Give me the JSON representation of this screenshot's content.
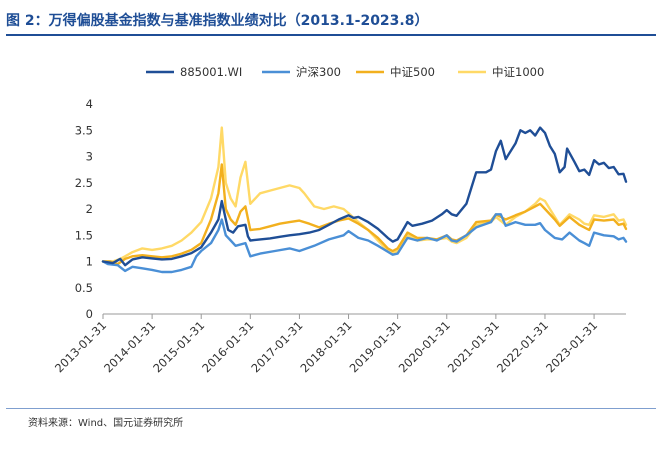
{
  "title": "图 2：万得偏股基金指数与基准指数业绩对比（2013.1-2023.8）",
  "source": "资料来源：Wind、国元证券研究所",
  "chart_data": {
    "type": "line",
    "title": "",
    "xlabel": "",
    "ylabel": "",
    "ylim": [
      0,
      4
    ],
    "yticks": [
      "0",
      "0.5",
      "1",
      "1.5",
      "2",
      "2.5",
      "3",
      "3.5",
      "4"
    ],
    "xticks": [
      "2013-01-31",
      "2014-01-31",
      "2015-01-31",
      "2016-01-31",
      "2017-01-31",
      "2018-01-31",
      "2019-01-31",
      "2020-01-31",
      "2021-01-31",
      "2022-01-31",
      "2023-01-31"
    ],
    "x_range": [
      2013.0,
      2023.65
    ],
    "grid": false,
    "legend_position": "top",
    "series": [
      {
        "name": "885001.WI",
        "color": "#1f4e96",
        "points": [
          [
            2013.0,
            1.0
          ],
          [
            2013.2,
            0.97
          ],
          [
            2013.35,
            1.05
          ],
          [
            2013.45,
            0.93
          ],
          [
            2013.6,
            1.04
          ],
          [
            2013.8,
            1.08
          ],
          [
            2014.0,
            1.06
          ],
          [
            2014.2,
            1.04
          ],
          [
            2014.4,
            1.05
          ],
          [
            2014.6,
            1.1
          ],
          [
            2014.8,
            1.16
          ],
          [
            2015.0,
            1.27
          ],
          [
            2015.2,
            1.55
          ],
          [
            2015.35,
            1.8
          ],
          [
            2015.42,
            2.15
          ],
          [
            2015.5,
            1.8
          ],
          [
            2015.55,
            1.6
          ],
          [
            2015.65,
            1.55
          ],
          [
            2015.75,
            1.67
          ],
          [
            2015.9,
            1.7
          ],
          [
            2015.95,
            1.48
          ],
          [
            2016.0,
            1.4
          ],
          [
            2016.2,
            1.42
          ],
          [
            2016.4,
            1.44
          ],
          [
            2016.6,
            1.47
          ],
          [
            2016.8,
            1.5
          ],
          [
            2017.0,
            1.52
          ],
          [
            2017.2,
            1.55
          ],
          [
            2017.4,
            1.6
          ],
          [
            2017.6,
            1.7
          ],
          [
            2017.8,
            1.8
          ],
          [
            2018.0,
            1.88
          ],
          [
            2018.1,
            1.83
          ],
          [
            2018.2,
            1.85
          ],
          [
            2018.4,
            1.75
          ],
          [
            2018.6,
            1.62
          ],
          [
            2018.8,
            1.45
          ],
          [
            2018.9,
            1.38
          ],
          [
            2019.0,
            1.42
          ],
          [
            2019.2,
            1.75
          ],
          [
            2019.3,
            1.68
          ],
          [
            2019.5,
            1.72
          ],
          [
            2019.7,
            1.78
          ],
          [
            2019.9,
            1.9
          ],
          [
            2020.0,
            1.98
          ],
          [
            2020.1,
            1.9
          ],
          [
            2020.2,
            1.87
          ],
          [
            2020.4,
            2.1
          ],
          [
            2020.5,
            2.4
          ],
          [
            2020.6,
            2.7
          ],
          [
            2020.8,
            2.7
          ],
          [
            2020.9,
            2.75
          ],
          [
            2021.0,
            3.1
          ],
          [
            2021.1,
            3.3
          ],
          [
            2021.2,
            2.95
          ],
          [
            2021.4,
            3.25
          ],
          [
            2021.5,
            3.5
          ],
          [
            2021.6,
            3.45
          ],
          [
            2021.7,
            3.5
          ],
          [
            2021.8,
            3.4
          ],
          [
            2021.9,
            3.55
          ],
          [
            2022.0,
            3.45
          ],
          [
            2022.1,
            3.2
          ],
          [
            2022.2,
            3.05
          ],
          [
            2022.3,
            2.7
          ],
          [
            2022.4,
            2.8
          ],
          [
            2022.45,
            3.15
          ],
          [
            2022.6,
            2.9
          ],
          [
            2022.7,
            2.72
          ],
          [
            2022.8,
            2.75
          ],
          [
            2022.9,
            2.65
          ],
          [
            2023.0,
            2.93
          ],
          [
            2023.1,
            2.85
          ],
          [
            2023.2,
            2.88
          ],
          [
            2023.3,
            2.78
          ],
          [
            2023.4,
            2.8
          ],
          [
            2023.5,
            2.66
          ],
          [
            2023.6,
            2.67
          ],
          [
            2023.65,
            2.52
          ]
        ]
      },
      {
        "name": "沪深300",
        "color": "#4a8fd6",
        "points": [
          [
            2013.0,
            1.0
          ],
          [
            2013.1,
            0.95
          ],
          [
            2013.3,
            0.93
          ],
          [
            2013.45,
            0.82
          ],
          [
            2013.6,
            0.9
          ],
          [
            2013.8,
            0.87
          ],
          [
            2014.0,
            0.84
          ],
          [
            2014.2,
            0.8
          ],
          [
            2014.4,
            0.8
          ],
          [
            2014.6,
            0.84
          ],
          [
            2014.8,
            0.9
          ],
          [
            2014.9,
            1.1
          ],
          [
            2015.0,
            1.2
          ],
          [
            2015.2,
            1.35
          ],
          [
            2015.35,
            1.6
          ],
          [
            2015.42,
            1.8
          ],
          [
            2015.5,
            1.5
          ],
          [
            2015.6,
            1.4
          ],
          [
            2015.7,
            1.3
          ],
          [
            2015.9,
            1.35
          ],
          [
            2016.0,
            1.1
          ],
          [
            2016.2,
            1.15
          ],
          [
            2016.5,
            1.2
          ],
          [
            2016.8,
            1.25
          ],
          [
            2017.0,
            1.2
          ],
          [
            2017.3,
            1.3
          ],
          [
            2017.6,
            1.42
          ],
          [
            2017.9,
            1.5
          ],
          [
            2018.0,
            1.58
          ],
          [
            2018.2,
            1.45
          ],
          [
            2018.4,
            1.4
          ],
          [
            2018.6,
            1.3
          ],
          [
            2018.9,
            1.13
          ],
          [
            2019.0,
            1.15
          ],
          [
            2019.2,
            1.45
          ],
          [
            2019.4,
            1.4
          ],
          [
            2019.6,
            1.45
          ],
          [
            2019.8,
            1.4
          ],
          [
            2020.0,
            1.5
          ],
          [
            2020.1,
            1.4
          ],
          [
            2020.2,
            1.38
          ],
          [
            2020.4,
            1.5
          ],
          [
            2020.6,
            1.65
          ],
          [
            2020.9,
            1.75
          ],
          [
            2021.0,
            1.9
          ],
          [
            2021.1,
            1.9
          ],
          [
            2021.2,
            1.68
          ],
          [
            2021.4,
            1.75
          ],
          [
            2021.6,
            1.7
          ],
          [
            2021.8,
            1.7
          ],
          [
            2021.9,
            1.73
          ],
          [
            2022.0,
            1.6
          ],
          [
            2022.2,
            1.45
          ],
          [
            2022.35,
            1.42
          ],
          [
            2022.5,
            1.55
          ],
          [
            2022.7,
            1.4
          ],
          [
            2022.8,
            1.35
          ],
          [
            2022.9,
            1.3
          ],
          [
            2023.0,
            1.55
          ],
          [
            2023.2,
            1.5
          ],
          [
            2023.4,
            1.48
          ],
          [
            2023.5,
            1.42
          ],
          [
            2023.6,
            1.45
          ],
          [
            2023.65,
            1.38
          ]
        ]
      },
      {
        "name": "中证500",
        "color": "#f2b01e",
        "points": [
          [
            2013.0,
            1.0
          ],
          [
            2013.15,
            1.0
          ],
          [
            2013.3,
            0.95
          ],
          [
            2013.45,
            1.05
          ],
          [
            2013.6,
            1.1
          ],
          [
            2013.8,
            1.12
          ],
          [
            2014.0,
            1.1
          ],
          [
            2014.2,
            1.08
          ],
          [
            2014.4,
            1.1
          ],
          [
            2014.6,
            1.15
          ],
          [
            2014.8,
            1.22
          ],
          [
            2015.0,
            1.35
          ],
          [
            2015.2,
            1.8
          ],
          [
            2015.35,
            2.3
          ],
          [
            2015.42,
            2.85
          ],
          [
            2015.5,
            2.0
          ],
          [
            2015.6,
            1.8
          ],
          [
            2015.7,
            1.7
          ],
          [
            2015.8,
            1.95
          ],
          [
            2015.9,
            2.05
          ],
          [
            2016.0,
            1.6
          ],
          [
            2016.2,
            1.62
          ],
          [
            2016.4,
            1.67
          ],
          [
            2016.6,
            1.72
          ],
          [
            2016.8,
            1.75
          ],
          [
            2017.0,
            1.78
          ],
          [
            2017.2,
            1.72
          ],
          [
            2017.4,
            1.65
          ],
          [
            2017.6,
            1.72
          ],
          [
            2017.8,
            1.78
          ],
          [
            2018.0,
            1.82
          ],
          [
            2018.2,
            1.72
          ],
          [
            2018.4,
            1.6
          ],
          [
            2018.6,
            1.45
          ],
          [
            2018.8,
            1.25
          ],
          [
            2018.9,
            1.2
          ],
          [
            2019.0,
            1.25
          ],
          [
            2019.2,
            1.55
          ],
          [
            2019.4,
            1.45
          ],
          [
            2019.6,
            1.45
          ],
          [
            2019.8,
            1.42
          ],
          [
            2020.0,
            1.5
          ],
          [
            2020.1,
            1.42
          ],
          [
            2020.2,
            1.4
          ],
          [
            2020.4,
            1.5
          ],
          [
            2020.6,
            1.75
          ],
          [
            2020.9,
            1.78
          ],
          [
            2021.0,
            1.9
          ],
          [
            2021.2,
            1.8
          ],
          [
            2021.4,
            1.88
          ],
          [
            2021.6,
            1.95
          ],
          [
            2021.8,
            2.05
          ],
          [
            2021.9,
            2.1
          ],
          [
            2022.0,
            2.0
          ],
          [
            2022.2,
            1.8
          ],
          [
            2022.3,
            1.68
          ],
          [
            2022.5,
            1.85
          ],
          [
            2022.7,
            1.7
          ],
          [
            2022.8,
            1.65
          ],
          [
            2022.9,
            1.6
          ],
          [
            2023.0,
            1.8
          ],
          [
            2023.2,
            1.78
          ],
          [
            2023.4,
            1.8
          ],
          [
            2023.5,
            1.7
          ],
          [
            2023.6,
            1.72
          ],
          [
            2023.65,
            1.62
          ]
        ]
      },
      {
        "name": "中证1000",
        "color": "#ffd966",
        "points": [
          [
            2013.0,
            1.0
          ],
          [
            2013.2,
            1.0
          ],
          [
            2013.35,
            1.05
          ],
          [
            2013.45,
            1.1
          ],
          [
            2013.6,
            1.18
          ],
          [
            2013.8,
            1.25
          ],
          [
            2014.0,
            1.22
          ],
          [
            2014.2,
            1.25
          ],
          [
            2014.4,
            1.3
          ],
          [
            2014.6,
            1.4
          ],
          [
            2014.8,
            1.55
          ],
          [
            2015.0,
            1.75
          ],
          [
            2015.2,
            2.2
          ],
          [
            2015.35,
            2.8
          ],
          [
            2015.42,
            3.55
          ],
          [
            2015.5,
            2.5
          ],
          [
            2015.6,
            2.2
          ],
          [
            2015.7,
            2.05
          ],
          [
            2015.8,
            2.6
          ],
          [
            2015.9,
            2.9
          ],
          [
            2016.0,
            2.1
          ],
          [
            2016.2,
            2.3
          ],
          [
            2016.4,
            2.35
          ],
          [
            2016.6,
            2.4
          ],
          [
            2016.8,
            2.45
          ],
          [
            2017.0,
            2.4
          ],
          [
            2017.1,
            2.3
          ],
          [
            2017.3,
            2.05
          ],
          [
            2017.5,
            2.0
          ],
          [
            2017.7,
            2.05
          ],
          [
            2017.9,
            2.0
          ],
          [
            2018.0,
            1.92
          ],
          [
            2018.2,
            1.75
          ],
          [
            2018.4,
            1.6
          ],
          [
            2018.6,
            1.4
          ],
          [
            2018.8,
            1.2
          ],
          [
            2018.9,
            1.15
          ],
          [
            2019.0,
            1.2
          ],
          [
            2019.2,
            1.5
          ],
          [
            2019.4,
            1.4
          ],
          [
            2019.6,
            1.42
          ],
          [
            2019.8,
            1.42
          ],
          [
            2020.0,
            1.45
          ],
          [
            2020.1,
            1.38
          ],
          [
            2020.2,
            1.35
          ],
          [
            2020.4,
            1.45
          ],
          [
            2020.6,
            1.7
          ],
          [
            2020.9,
            1.75
          ],
          [
            2021.0,
            1.85
          ],
          [
            2021.2,
            1.7
          ],
          [
            2021.4,
            1.85
          ],
          [
            2021.6,
            1.95
          ],
          [
            2021.8,
            2.1
          ],
          [
            2021.9,
            2.2
          ],
          [
            2022.0,
            2.15
          ],
          [
            2022.2,
            1.85
          ],
          [
            2022.3,
            1.7
          ],
          [
            2022.5,
            1.9
          ],
          [
            2022.7,
            1.8
          ],
          [
            2022.8,
            1.72
          ],
          [
            2022.9,
            1.7
          ],
          [
            2023.0,
            1.88
          ],
          [
            2023.2,
            1.85
          ],
          [
            2023.4,
            1.9
          ],
          [
            2023.5,
            1.78
          ],
          [
            2023.6,
            1.8
          ],
          [
            2023.65,
            1.7
          ]
        ]
      }
    ]
  }
}
